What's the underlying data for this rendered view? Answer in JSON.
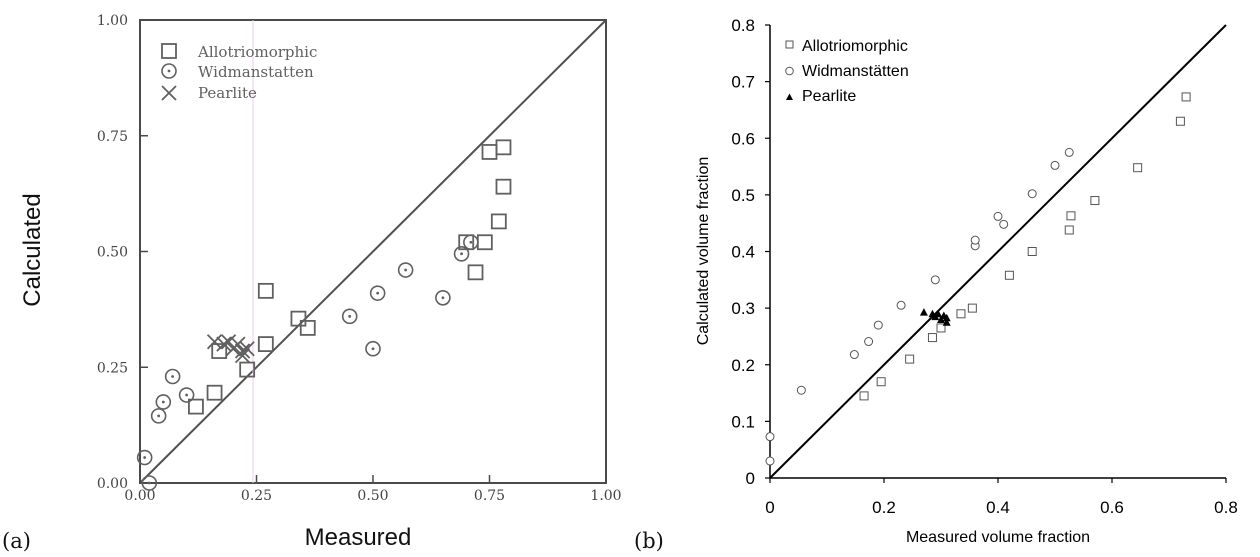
{
  "panels": [
    {
      "panel_label": "(a)",
      "xlabel": "Measured",
      "ylabel": "Calculated",
      "ticks": [
        "0.00",
        "0.25",
        "0.50",
        "0.75",
        "1.00"
      ],
      "legend": [
        {
          "label": "Allotriomorphic",
          "marker": "open-square"
        },
        {
          "label": "Widmanstatten",
          "marker": "dotted-circle"
        },
        {
          "label": "Pearlite",
          "marker": "cross"
        }
      ]
    },
    {
      "panel_label": "(b)",
      "xlabel": "Measured volume fraction",
      "ylabel": "Calculated volume fraction",
      "xticks": [
        "0",
        "0.2",
        "0.4",
        "0.6",
        "0.8"
      ],
      "yticks": [
        "0",
        "0.1",
        "0.2",
        "0.3",
        "0.4",
        "0.5",
        "0.6",
        "0.7",
        "0.8"
      ],
      "legend": [
        {
          "label": "Allotriomorphic",
          "marker": "open-square"
        },
        {
          "label": "Widmanstätten",
          "marker": "open-circle"
        },
        {
          "label": "Pearlite",
          "marker": "filled-triangle"
        }
      ]
    }
  ],
  "chart_data": [
    {
      "type": "scatter",
      "xlim": [
        0,
        1
      ],
      "ylim": [
        0,
        1
      ],
      "grid": false,
      "legend_position": "top-left",
      "colors": {
        "markers": "#606060",
        "axes": "#505050"
      },
      "reference_line": [
        [
          0,
          0
        ],
        [
          1,
          1
        ]
      ],
      "series": [
        {
          "name": "Allotriomorphic",
          "points": [
            [
              0.12,
              0.165
            ],
            [
              0.16,
              0.195
            ],
            [
              0.17,
              0.285
            ],
            [
              0.23,
              0.245
            ],
            [
              0.27,
              0.3
            ],
            [
              0.27,
              0.415
            ],
            [
              0.34,
              0.355
            ],
            [
              0.36,
              0.335
            ],
            [
              0.7,
              0.52
            ],
            [
              0.72,
              0.455
            ],
            [
              0.74,
              0.52
            ],
            [
              0.75,
              0.715
            ],
            [
              0.77,
              0.565
            ],
            [
              0.78,
              0.64
            ],
            [
              0.78,
              0.725
            ]
          ]
        },
        {
          "name": "Widmanstatten",
          "points": [
            [
              0.01,
              0.055
            ],
            [
              0.02,
              0.0
            ],
            [
              0.04,
              0.145
            ],
            [
              0.05,
              0.175
            ],
            [
              0.07,
              0.23
            ],
            [
              0.1,
              0.19
            ],
            [
              0.45,
              0.36
            ],
            [
              0.5,
              0.29
            ],
            [
              0.51,
              0.41
            ],
            [
              0.57,
              0.46
            ],
            [
              0.65,
              0.4
            ],
            [
              0.69,
              0.495
            ],
            [
              0.71,
              0.52
            ]
          ]
        },
        {
          "name": "Pearlite",
          "points": [
            [
              0.16,
              0.305
            ],
            [
              0.18,
              0.3
            ],
            [
              0.19,
              0.305
            ],
            [
              0.2,
              0.29
            ],
            [
              0.21,
              0.3
            ],
            [
              0.22,
              0.285
            ],
            [
              0.22,
              0.275
            ],
            [
              0.23,
              0.29
            ]
          ]
        }
      ]
    },
    {
      "type": "scatter",
      "xlim": [
        0,
        0.8
      ],
      "ylim": [
        0,
        0.8
      ],
      "grid": false,
      "legend_position": "top-left",
      "colors": {
        "markers": "#000000",
        "open_marker_stroke": "#555555"
      },
      "reference_line": [
        [
          0,
          0
        ],
        [
          0.8,
          0.8
        ]
      ],
      "series": [
        {
          "name": "Allotriomorphic",
          "points": [
            [
              0.165,
              0.145
            ],
            [
              0.195,
              0.17
            ],
            [
              0.245,
              0.21
            ],
            [
              0.285,
              0.248
            ],
            [
              0.3,
              0.265
            ],
            [
              0.335,
              0.29
            ],
            [
              0.355,
              0.3
            ],
            [
              0.42,
              0.358
            ],
            [
              0.46,
              0.4
            ],
            [
              0.525,
              0.438
            ],
            [
              0.528,
              0.463
            ],
            [
              0.57,
              0.49
            ],
            [
              0.645,
              0.548
            ],
            [
              0.72,
              0.63
            ],
            [
              0.73,
              0.673
            ]
          ]
        },
        {
          "name": "Widmanstätten",
          "points": [
            [
              0.0,
              0.073
            ],
            [
              0.0,
              0.03
            ],
            [
              0.055,
              0.155
            ],
            [
              0.148,
              0.218
            ],
            [
              0.173,
              0.241
            ],
            [
              0.19,
              0.27
            ],
            [
              0.23,
              0.305
            ],
            [
              0.29,
              0.35
            ],
            [
              0.36,
              0.41
            ],
            [
              0.36,
              0.42
            ],
            [
              0.4,
              0.462
            ],
            [
              0.41,
              0.448
            ],
            [
              0.46,
              0.502
            ],
            [
              0.5,
              0.552
            ],
            [
              0.525,
              0.575
            ]
          ]
        },
        {
          "name": "Pearlite",
          "points": [
            [
              0.27,
              0.293
            ],
            [
              0.285,
              0.29
            ],
            [
              0.29,
              0.285
            ],
            [
              0.295,
              0.29
            ],
            [
              0.3,
              0.28
            ],
            [
              0.305,
              0.287
            ],
            [
              0.31,
              0.275
            ],
            [
              0.31,
              0.283
            ]
          ]
        }
      ]
    }
  ]
}
